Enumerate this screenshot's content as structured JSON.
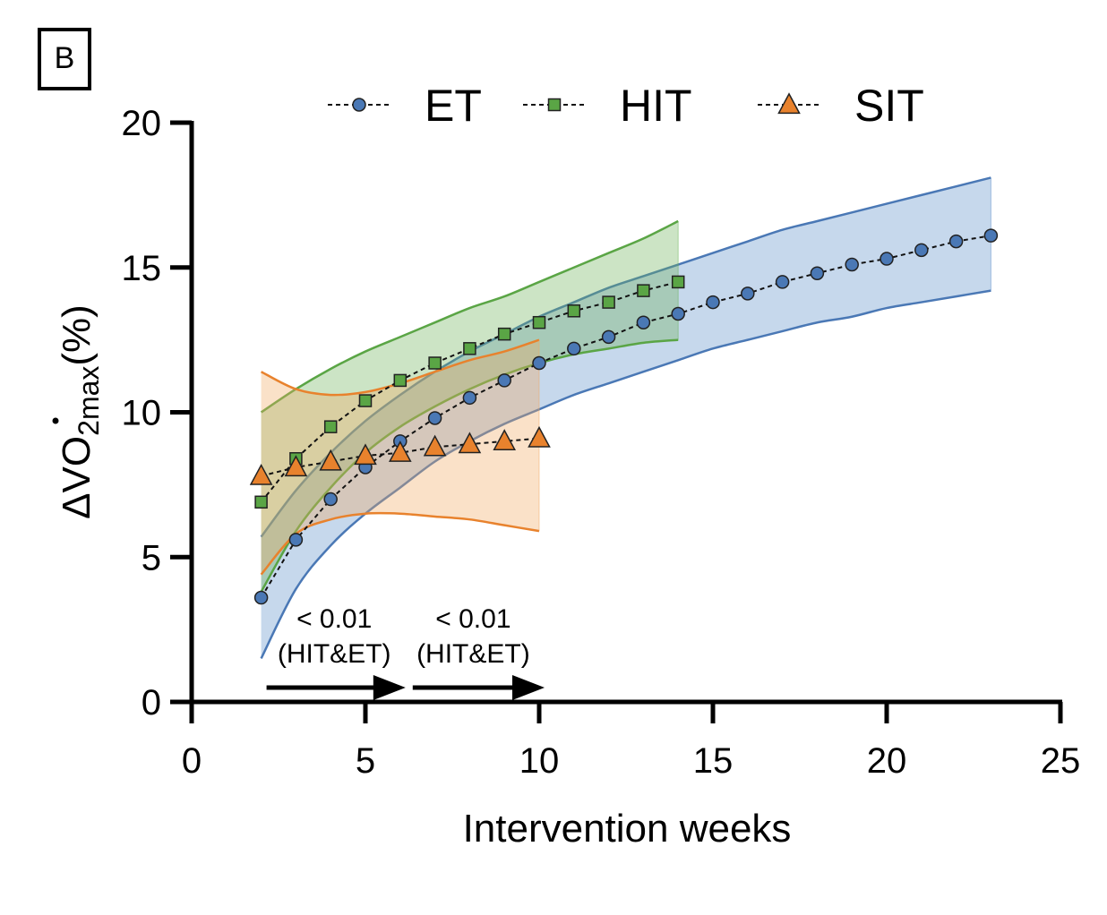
{
  "panel_label": "B",
  "chart_data": {
    "type": "line",
    "xlabel": "Intervention weeks",
    "ylabel": {
      "delta": "Δ",
      "v": "V",
      "o": "O",
      "sub": "2max",
      "unit": "(%)"
    },
    "xlim": [
      0,
      25
    ],
    "ylim": [
      0,
      20
    ],
    "xticks": [
      "0",
      "5",
      "10",
      "15",
      "20",
      "25"
    ],
    "yticks": [
      "0",
      "5",
      "10",
      "15",
      "20"
    ],
    "legend_position": "top",
    "series": [
      {
        "name": "ET",
        "marker": "circle",
        "color": "#4a78b5",
        "band_color": "#5b8ec9",
        "x": [
          2,
          3,
          4,
          5,
          6,
          7,
          8,
          9,
          10,
          11,
          12,
          13,
          14,
          15,
          16,
          17,
          18,
          19,
          20,
          21,
          22,
          23
        ],
        "y": [
          3.6,
          5.6,
          7.0,
          8.1,
          9.0,
          9.8,
          10.5,
          11.1,
          11.7,
          12.2,
          12.6,
          13.1,
          13.4,
          13.8,
          14.1,
          14.5,
          14.8,
          15.1,
          15.3,
          15.6,
          15.9,
          16.1
        ],
        "band_upper": [
          5.7,
          7.3,
          8.6,
          9.7,
          10.6,
          11.4,
          12.1,
          12.7,
          13.3,
          13.8,
          14.3,
          14.7,
          15.1,
          15.5,
          15.9,
          16.3,
          16.6,
          16.9,
          17.2,
          17.5,
          17.8,
          18.1
        ],
        "band_lower": [
          1.5,
          3.9,
          5.4,
          6.5,
          7.4,
          8.3,
          9.0,
          9.6,
          10.1,
          10.6,
          11.0,
          11.4,
          11.8,
          12.2,
          12.5,
          12.8,
          13.1,
          13.3,
          13.6,
          13.8,
          14.0,
          14.2
        ]
      },
      {
        "name": "HIT",
        "marker": "square",
        "color": "#5aa545",
        "band_color": "#6cb35a",
        "x": [
          2,
          3,
          4,
          5,
          6,
          7,
          8,
          9,
          10,
          11,
          12,
          13,
          14
        ],
        "y": [
          6.9,
          8.4,
          9.5,
          10.4,
          11.1,
          11.7,
          12.2,
          12.7,
          13.1,
          13.5,
          13.8,
          14.2,
          14.5
        ],
        "band_upper": [
          10.0,
          10.8,
          11.5,
          12.1,
          12.6,
          13.1,
          13.6,
          14.0,
          14.5,
          15.0,
          15.5,
          16.0,
          16.6
        ],
        "band_lower": [
          3.8,
          5.9,
          7.4,
          8.6,
          9.5,
          10.2,
          10.8,
          11.3,
          11.7,
          12.0,
          12.2,
          12.4,
          12.5
        ]
      },
      {
        "name": "SIT",
        "marker": "triangle",
        "color": "#e8822d",
        "band_color": "#f0a860",
        "x": [
          2,
          3,
          4,
          5,
          6,
          7,
          8,
          9,
          10
        ],
        "y": [
          7.8,
          8.1,
          8.3,
          8.5,
          8.6,
          8.8,
          8.9,
          9.0,
          9.1
        ],
        "band_upper": [
          11.4,
          10.8,
          10.6,
          10.7,
          11.0,
          11.4,
          11.8,
          12.1,
          12.5
        ],
        "band_lower": [
          4.4,
          5.8,
          6.3,
          6.5,
          6.5,
          6.4,
          6.3,
          6.1,
          5.9
        ]
      }
    ],
    "annotations": [
      {
        "line1": "< 0.01",
        "line2": "(HIT&ET)",
        "x_start": 2,
        "x_end": 6
      },
      {
        "line1": "< 0.01",
        "line2": "(HIT&ET)",
        "x_start": 6,
        "x_end": 10
      }
    ]
  }
}
